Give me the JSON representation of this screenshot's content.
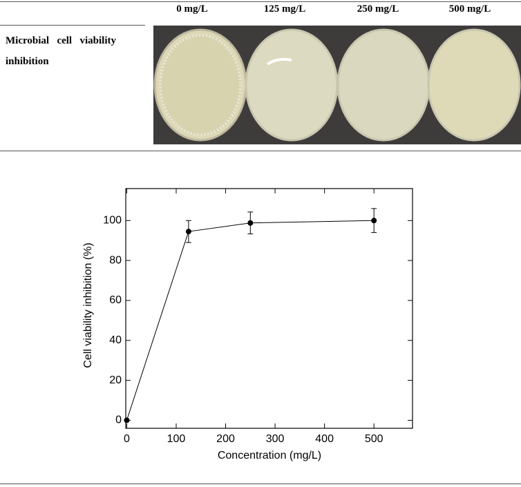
{
  "table": {
    "columns": [
      "0 mg/L",
      "125 mg/L",
      "250 mg/L",
      "500 mg/L"
    ],
    "row_label": "Microbial cell viability inhibition"
  },
  "chart_data": {
    "type": "line",
    "x": [
      0,
      125,
      250,
      500
    ],
    "values": [
      0,
      94.5,
      98.8,
      100
    ],
    "errors": [
      0,
      5.5,
      5.5,
      6
    ],
    "color": "#000000",
    "xlabel": "Concentration (mg/L)",
    "ylabel": "Cell viability inhibition (%)",
    "xlim": [
      -2,
      578
    ],
    "ylim": [
      -4,
      116
    ],
    "xticks": [
      0,
      100,
      200,
      300,
      400,
      500
    ],
    "yticks": [
      0,
      20,
      40,
      60,
      80,
      100
    ]
  }
}
